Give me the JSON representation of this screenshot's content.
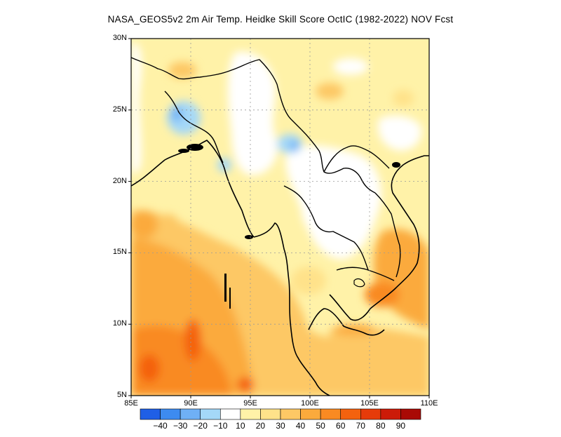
{
  "title": "NASA_GEOS5v2  2m Air Temp. Heidke Skill Score OctIC (1982-2022) NOV Fcst",
  "map": {
    "lon_range": [
      85,
      110
    ],
    "lat_range": [
      5,
      30
    ],
    "grid": "dotted"
  },
  "axes": {
    "y_ticks": [
      {
        "lat": 30,
        "label": "30N"
      },
      {
        "lat": 25,
        "label": "25N"
      },
      {
        "lat": 20,
        "label": "20N"
      },
      {
        "lat": 15,
        "label": "15N"
      },
      {
        "lat": 10,
        "label": "10N"
      },
      {
        "lat": 5,
        "label": "5N"
      }
    ],
    "x_ticks": [
      {
        "lon": 85,
        "label": "85E"
      },
      {
        "lon": 90,
        "label": "90E"
      },
      {
        "lon": 95,
        "label": "95E"
      },
      {
        "lon": 100,
        "label": "100E"
      },
      {
        "lon": 105,
        "label": "105E"
      },
      {
        "lon": 110,
        "label": "110E"
      }
    ]
  },
  "colorbar": {
    "colors": [
      "#1f5fe6",
      "#3d8bf0",
      "#6fb0f5",
      "#a4d8f8",
      "#ffffff",
      "#fff2a8",
      "#ffe28a",
      "#fdc865",
      "#fbaa3c",
      "#f98a22",
      "#f4620e",
      "#e63b0a",
      "#cc1b08",
      "#a90a05"
    ],
    "labels": [
      {
        "index": 1,
        "text": "−40"
      },
      {
        "index": 2,
        "text": "−30"
      },
      {
        "index": 3,
        "text": "−20"
      },
      {
        "index": 4,
        "text": "−10"
      },
      {
        "index": 5,
        "text": "10"
      },
      {
        "index": 6,
        "text": "20"
      },
      {
        "index": 7,
        "text": "30"
      },
      {
        "index": 8,
        "text": "40"
      },
      {
        "index": 9,
        "text": "50"
      },
      {
        "index": 10,
        "text": "60"
      },
      {
        "index": 11,
        "text": "70"
      },
      {
        "index": 12,
        "text": "80"
      },
      {
        "index": 13,
        "text": "90"
      }
    ]
  }
}
